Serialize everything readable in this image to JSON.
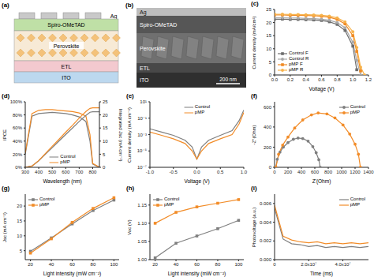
{
  "chart_data": [
    {
      "type": "line",
      "title": "(c)",
      "x_label": "Voltage (V)",
      "y_label": "Current density (mA/cm²)",
      "legend": "lower left",
      "x": [
        0,
        0.1,
        0.2,
        0.3,
        0.4,
        0.5,
        0.6,
        0.7,
        0.8,
        0.9,
        1.0,
        1.05,
        1.1,
        1.15
      ],
      "xlim": [
        0,
        1.2
      ],
      "xticks": [
        {
          "value": 0,
          "label": "0.0"
        },
        {
          "value": 0.2,
          "label": "0.2"
        },
        {
          "value": 0.4,
          "label": "0.4"
        },
        {
          "value": 0.6,
          "label": "0.6"
        },
        {
          "value": 0.8,
          "label": "0.8"
        },
        {
          "value": 1.0,
          "label": "1.0"
        },
        {
          "value": 1.2,
          "label": "1.2"
        }
      ],
      "ylim": [
        0,
        25
      ],
      "yticks": [
        0,
        5,
        10,
        15,
        20,
        25
      ],
      "series": [
        {
          "name": "Control F",
          "color": "#6d6d6d",
          "marker": "square",
          "values": [
            21.3,
            21.3,
            21.2,
            21.2,
            21.1,
            21.0,
            20.8,
            20.3,
            19.3,
            17.0,
            11.0,
            2.0,
            null,
            null
          ]
        },
        {
          "name": "Control R",
          "color": "#a8a8a8",
          "marker": "circle",
          "values": [
            21.8,
            21.8,
            21.7,
            21.7,
            21.6,
            21.5,
            21.3,
            20.9,
            20.0,
            18.0,
            12.5,
            5.5,
            0,
            null
          ]
        },
        {
          "name": "pMP F",
          "color": "#f08a24",
          "marker": "square",
          "values": [
            22.9,
            22.9,
            22.8,
            22.8,
            22.7,
            22.6,
            22.4,
            22.0,
            21.2,
            19.5,
            15.0,
            9.0,
            1.5,
            null
          ]
        },
        {
          "name": "pMP R",
          "color": "#f7b24a",
          "marker": "circle",
          "values": [
            23.2,
            23.2,
            23.1,
            23.1,
            23.0,
            22.9,
            22.8,
            22.5,
            21.8,
            20.3,
            16.5,
            10.5,
            3.0,
            0
          ]
        }
      ]
    },
    {
      "type": "line",
      "title": "(d)",
      "x_label": "Wavelength (nm)",
      "y_label": "IPCE",
      "y2_label": "Integrated Jsc (mA cm⁻²)",
      "legend": "lower center",
      "x": [
        300,
        350,
        400,
        450,
        500,
        550,
        600,
        650,
        700,
        750,
        780,
        800,
        850
      ],
      "xlim": [
        300,
        850
      ],
      "xticks": [
        300,
        400,
        500,
        600,
        700,
        800
      ],
      "ylim": [
        0,
        100
      ],
      "yticks": [
        {
          "value": 0,
          "label": "0%"
        },
        {
          "value": 20,
          "label": "20%"
        },
        {
          "value": 40,
          "label": "40%"
        },
        {
          "value": 60,
          "label": "60%"
        },
        {
          "value": 80,
          "label": "80%"
        },
        {
          "value": 100,
          "label": "100%"
        }
      ],
      "y2lim": [
        0,
        25
      ],
      "y2ticks": [
        0,
        5,
        10,
        15,
        20,
        25
      ],
      "series": [
        {
          "name": "Control",
          "color": "#7f7f7f",
          "marker": "none",
          "values": [
            20,
            78,
            82,
            83,
            84,
            83,
            82,
            80,
            77,
            70,
            40,
            5,
            0
          ]
        },
        {
          "name": "pMP",
          "color": "#f28c28",
          "marker": "none",
          "values": [
            22,
            82,
            87,
            88,
            88,
            87,
            86,
            85,
            83,
            78,
            50,
            6,
            0
          ]
        },
        {
          "name": "Control",
          "color": "#7f7f7f",
          "marker": "none",
          "axis": "y2",
          "values": [
            0,
            0.5,
            2.5,
            5,
            7.5,
            10,
            12.5,
            15,
            17.5,
            19.8,
            21,
            21.2,
            21.2
          ]
        },
        {
          "name": "pMP",
          "color": "#f28c28",
          "marker": "none",
          "axis": "y2",
          "values": [
            0,
            0.5,
            2.6,
            5.3,
            8,
            10.7,
            13.4,
            16,
            18.8,
            21.3,
            22.5,
            22.7,
            22.7
          ]
        }
      ]
    },
    {
      "type": "line",
      "title": "(e)",
      "x_label": "Voltage (V)",
      "y_label": "Current density (mA cm⁻²)",
      "legend": "upper center",
      "log": "y",
      "x": [
        -1,
        -0.75,
        -0.5,
        -0.25,
        -0.1,
        0,
        0.1,
        0.25,
        0.5,
        0.75,
        0.9,
        1.0
      ],
      "xlim": [
        -1,
        1
      ],
      "xticks": [
        {
          "value": -1,
          "label": "-1.0"
        },
        {
          "value": -0.5,
          "label": "-0.5"
        },
        {
          "value": 0,
          "label": "0.0"
        },
        {
          "value": 0.5,
          "label": "0.5"
        },
        {
          "value": 1,
          "label": "1.0"
        }
      ],
      "ylim": [
        1e-07,
        10
      ],
      "yticks": [
        {
          "value": 1e-07,
          "label": "10⁻⁷"
        },
        {
          "value": 1e-05,
          "label": "10⁻⁵"
        },
        {
          "value": 0.001,
          "label": "10⁻³"
        },
        {
          "value": 0.1,
          "label": "10⁻¹"
        },
        {
          "value": 10,
          "label": "10¹"
        }
      ],
      "series": [
        {
          "name": "Control",
          "color": "#7f7f7f",
          "marker": "none",
          "values": [
            0.005,
            0.002,
            0.0008,
            0.0002,
            3e-05,
            1e-06,
            3e-05,
            0.0002,
            0.0008,
            0.003,
            0.05,
            1
          ]
        },
        {
          "name": "pMP",
          "color": "#f28c28",
          "marker": "none",
          "values": [
            0.002,
            0.0008,
            0.0003,
            8e-05,
            1e-05,
            1e-06,
            1e-05,
            8e-05,
            0.0003,
            0.001,
            0.02,
            0.5
          ]
        }
      ]
    },
    {
      "type": "line",
      "title": "(f)",
      "x_label": "Z'(Ohm)",
      "y_label": "-Z''(Ohm)",
      "legend": "upper right",
      "xlim": [
        0,
        1400
      ],
      "xticks": [
        0,
        200,
        400,
        600,
        800,
        1000,
        1200,
        1400
      ],
      "ylim": [
        0,
        650
      ],
      "yticks": [
        0,
        200,
        400,
        600
      ],
      "series": [
        {
          "name": "Control",
          "color": "#7f7f7f",
          "marker": "circle",
          "x": [
            20,
            40,
            80,
            130,
            200,
            280,
            350,
            420,
            500,
            570,
            620,
            660,
            680
          ],
          "values": [
            0,
            80,
            150,
            200,
            245,
            278,
            290,
            285,
            260,
            205,
            145,
            75,
            0
          ]
        },
        {
          "name": "pMP",
          "color": "#f28c28",
          "marker": "circle",
          "x": [
            20,
            60,
            120,
            200,
            300,
            420,
            550,
            650,
            780,
            900,
            1020,
            1120,
            1200,
            1250,
            1280
          ],
          "values": [
            0,
            130,
            220,
            300,
            390,
            470,
            520,
            540,
            530,
            490,
            420,
            330,
            230,
            130,
            0
          ]
        }
      ]
    },
    {
      "type": "line",
      "title": "(g)",
      "x_label": "Light intensity (mW cm⁻²)",
      "y_label": "Jsc (mA cm⁻²)",
      "legend": "upper left",
      "x": [
        20,
        40,
        60,
        80,
        100
      ],
      "xlim": [
        15,
        105
      ],
      "xticks": [
        20,
        40,
        60,
        80,
        100
      ],
      "ylim": [
        2,
        24
      ],
      "yticks": [
        5,
        10,
        15,
        20
      ],
      "series": [
        {
          "name": "Control",
          "color": "#7f7f7f",
          "marker": "square",
          "values": [
            4.8,
            9.3,
            14.0,
            18.5,
            22.0
          ]
        },
        {
          "name": "pMP",
          "color": "#f28c28",
          "marker": "square",
          "values": [
            4.2,
            9.0,
            14.5,
            19.2,
            22.8
          ]
        }
      ]
    },
    {
      "type": "line",
      "title": "(h)",
      "x_label": "Light intensity (mW cm⁻²)",
      "y_label": "Voc (V)",
      "legend": "upper left",
      "x": [
        20,
        40,
        60,
        80,
        100
      ],
      "xlim": [
        15,
        105
      ],
      "xticks": [
        20,
        40,
        60,
        80,
        100
      ],
      "ylim": [
        1.0,
        1.18
      ],
      "yticks": [
        {
          "value": 1.0,
          "label": "1.00"
        },
        {
          "value": 1.05,
          "label": "1.05"
        },
        {
          "value": 1.1,
          "label": "1.10"
        },
        {
          "value": 1.15,
          "label": "1.15"
        }
      ],
      "series": [
        {
          "name": "Control",
          "color": "#7f7f7f",
          "marker": "square",
          "values": [
            1.005,
            1.045,
            1.065,
            1.085,
            1.108
          ]
        },
        {
          "name": "pMP",
          "color": "#f28c28",
          "marker": "square",
          "values": [
            1.1,
            1.13,
            1.145,
            1.155,
            1.165
          ]
        }
      ]
    },
    {
      "type": "line",
      "title": "(i)",
      "x_label": "Time (ms)",
      "y_label": "Photovoltage (a.u.)",
      "legend": "upper right",
      "x": [
        0,
        5000000,
        10000000,
        15000000,
        20000000,
        25000000,
        30000000,
        35000000,
        40000000,
        45000000,
        50000000,
        55000000
      ],
      "xlim": [
        0,
        55000000
      ],
      "xticks": [
        0,
        {
          "value": 20000000,
          "label": "2.0x10⁷"
        },
        {
          "value": 40000000,
          "label": "4.0x10⁷"
        }
      ],
      "ylim": [
        0,
        0.007
      ],
      "yticks": [
        {
          "value": 0,
          "label": "0.000"
        },
        0.002,
        0.004,
        0.006
      ],
      "series": [
        {
          "name": "Control",
          "color": "#7f7f7f",
          "marker": "none",
          "values": [
            0.0055,
            0.0022,
            0.0017,
            0.0016,
            0.0014,
            0.0015,
            0.0013,
            0.0014,
            0.0013,
            0.0014,
            0.0013,
            0.0014
          ]
        },
        {
          "name": "pMP",
          "color": "#f28c28",
          "marker": "none",
          "values": [
            0.0058,
            0.0025,
            0.0021,
            0.0019,
            0.0018,
            0.0019,
            0.0017,
            0.0018,
            0.0017,
            0.0018,
            0.0017,
            0.0018
          ]
        }
      ]
    }
  ],
  "device_structure": {
    "title": "(a)",
    "layers": [
      "Ag",
      "Spiro-OMeTAD",
      "Perovskite",
      "ETL",
      "ITO"
    ]
  },
  "sem_image": {
    "title": "(b)",
    "layers": [
      "Ag",
      "Spiro-OMeTAD",
      "Perovskite",
      "ETL",
      "ITO"
    ],
    "scale_bar": "200 nm"
  }
}
